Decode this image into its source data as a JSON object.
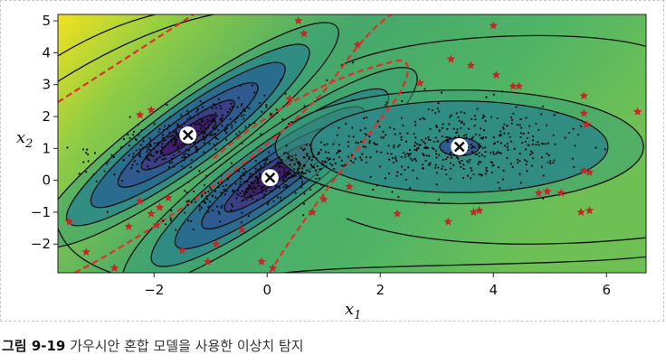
{
  "chart_data": {
    "type": "scatter",
    "title": "",
    "xlabel": "x",
    "xlabel_sub": "1",
    "ylabel": "x",
    "ylabel_sub": "2",
    "xlim": [
      -3.7,
      6.7
    ],
    "ylim": [
      -2.9,
      5.2
    ],
    "xticks": [
      -2,
      0,
      2,
      4,
      6
    ],
    "xtick_labels": [
      "−2",
      "0",
      "2",
      "4",
      "6"
    ],
    "yticks": [
      -2,
      -1,
      0,
      1,
      2,
      3,
      4,
      5
    ],
    "ytick_labels": [
      "−2",
      "−1",
      "0",
      "1",
      "2",
      "3",
      "4",
      "5"
    ],
    "grid": false,
    "background": "filled density contour map (log-likelihood of Gaussian mixture)",
    "colors": {
      "dense": "#3d1f6e",
      "mid": "#2c7a8a",
      "outer": "#3aa073",
      "far": "#8fcc45",
      "corner": "#f1e21f",
      "contour_line": "#111111",
      "decision_boundary": "#e0302a",
      "anomaly": "#c42727",
      "point": "#0d0d0d"
    },
    "cluster_centers": [
      {
        "x": -1.4,
        "y": 1.42
      },
      {
        "x": 0.05,
        "y": 0.08
      },
      {
        "x": 3.4,
        "y": 1.05
      }
    ],
    "anomalies": [
      {
        "x": 0.55,
        "y": 5.0
      },
      {
        "x": 1.6,
        "y": 4.25
      },
      {
        "x": 4.0,
        "y": 4.85
      },
      {
        "x": 0.65,
        "y": 4.6
      },
      {
        "x": 3.25,
        "y": 3.8
      },
      {
        "x": 3.6,
        "y": 3.6
      },
      {
        "x": 4.05,
        "y": 3.3
      },
      {
        "x": 4.35,
        "y": 2.95
      },
      {
        "x": 4.45,
        "y": 2.95
      },
      {
        "x": 5.6,
        "y": 2.65
      },
      {
        "x": 6.55,
        "y": 2.15
      },
      {
        "x": 5.6,
        "y": 2.1
      },
      {
        "x": 5.65,
        "y": 1.75
      },
      {
        "x": 2.7,
        "y": 3.05
      },
      {
        "x": -2.25,
        "y": 2.05
      },
      {
        "x": -2.05,
        "y": 2.2
      },
      {
        "x": 0.4,
        "y": 2.55
      },
      {
        "x": 5.6,
        "y": 0.3
      },
      {
        "x": 5.7,
        "y": 0.25
      },
      {
        "x": 4.95,
        "y": -0.35
      },
      {
        "x": 5.2,
        "y": -0.4
      },
      {
        "x": 4.8,
        "y": -0.4
      },
      {
        "x": 5.7,
        "y": -0.95
      },
      {
        "x": 5.55,
        "y": -1.0
      },
      {
        "x": 3.75,
        "y": -0.95
      },
      {
        "x": 3.65,
        "y": -1.0
      },
      {
        "x": 3.2,
        "y": -1.3
      },
      {
        "x": 2.3,
        "y": -1.05
      },
      {
        "x": 1.45,
        "y": -0.2
      },
      {
        "x": 0.8,
        "y": -1.0
      },
      {
        "x": -0.45,
        "y": -1.55
      },
      {
        "x": -0.9,
        "y": -2.0
      },
      {
        "x": -1.5,
        "y": -2.2
      },
      {
        "x": -1.75,
        "y": -0.55
      },
      {
        "x": -1.9,
        "y": -0.85
      },
      {
        "x": -2.05,
        "y": -1.05
      },
      {
        "x": -1.95,
        "y": -1.4
      },
      {
        "x": -2.25,
        "y": -0.65
      },
      {
        "x": -2.45,
        "y": -1.45
      },
      {
        "x": -3.5,
        "y": -1.3
      },
      {
        "x": -3.2,
        "y": -2.25
      },
      {
        "x": -2.7,
        "y": -2.75
      },
      {
        "x": -1.05,
        "y": -2.55
      },
      {
        "x": -0.1,
        "y": -2.55
      },
      {
        "x": 0.1,
        "y": -2.75
      },
      {
        "x": 1.0,
        "y": -0.6
      }
    ]
  },
  "caption": {
    "figure_number": "그림 9-19",
    "text": "가우시안 혼합 모델을 사용한 이상치 탐지"
  }
}
